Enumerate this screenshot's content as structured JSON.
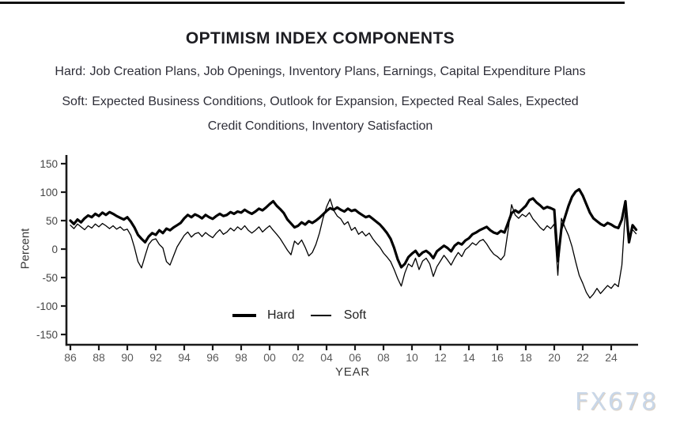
{
  "page": {
    "watermark": "FX678"
  },
  "header": {
    "title": "OPTIMISM INDEX COMPONENTS",
    "hard_label": "Hard:",
    "hard_items": "Job Creation Plans, Job Openings, Inventory Plans, Earnings, Capital Expenditure Plans",
    "soft_label": "Soft:",
    "soft_items_line1": "Expected Business Conditions, Outlook for Expansion, Expected Real Sales, Expected",
    "soft_items_line2": "Credit Conditions, Inventory Satisfaction"
  },
  "colors": {
    "line": "#000000",
    "axis": "#1a1a1a",
    "tick_label": "#5a5a5a",
    "text": "#2e2e38",
    "watermark": "#c9d7e8"
  },
  "chart_data": {
    "type": "line",
    "title": "OPTIMISM INDEX COMPONENTS",
    "xlabel": "YEAR",
    "ylabel": "Percent",
    "ylim": [
      -150,
      150
    ],
    "grid": false,
    "legend_position": "inside-bottom-center",
    "y_ticks": [
      150,
      100,
      50,
      0,
      -50,
      -100,
      -150
    ],
    "x_tick_years": [
      1986,
      1988,
      1990,
      1992,
      1994,
      1996,
      1998,
      2000,
      2002,
      2004,
      2006,
      2008,
      2010,
      2012,
      2014,
      2016,
      2018,
      2020,
      2022,
      2024
    ],
    "x_tick_labels": [
      "86",
      "88",
      "90",
      "92",
      "94",
      "96",
      "98",
      "00",
      "02",
      "04",
      "06",
      "08",
      "10",
      "12",
      "14",
      "16",
      "18",
      "20",
      "22",
      "24"
    ],
    "x_start": 1986,
    "x_step": 0.25,
    "x_end": 2025.75,
    "series": [
      {
        "name": "Hard",
        "stroke_width": 3.2,
        "values": [
          50,
          44,
          52,
          47,
          54,
          59,
          56,
          62,
          58,
          64,
          60,
          65,
          62,
          58,
          55,
          52,
          56,
          48,
          38,
          25,
          18,
          12,
          22,
          28,
          25,
          33,
          28,
          36,
          33,
          38,
          42,
          46,
          54,
          60,
          56,
          61,
          58,
          54,
          60,
          56,
          53,
          58,
          62,
          58,
          60,
          65,
          62,
          66,
          64,
          69,
          65,
          62,
          66,
          71,
          68,
          73,
          79,
          84,
          76,
          70,
          63,
          52,
          45,
          38,
          41,
          47,
          43,
          49,
          46,
          50,
          55,
          61,
          67,
          72,
          69,
          73,
          69,
          66,
          71,
          67,
          69,
          64,
          60,
          56,
          58,
          53,
          48,
          43,
          36,
          28,
          18,
          2,
          -18,
          -32,
          -26,
          -14,
          -8,
          -3,
          -12,
          -6,
          -3,
          -8,
          -16,
          -4,
          1,
          6,
          2,
          -4,
          6,
          11,
          8,
          15,
          19,
          26,
          29,
          33,
          36,
          39,
          33,
          29,
          27,
          32,
          29,
          46,
          63,
          68,
          64,
          70,
          76,
          86,
          89,
          82,
          77,
          71,
          74,
          72,
          69,
          -21,
          36,
          56,
          76,
          92,
          101,
          105,
          94,
          79,
          64,
          54,
          49,
          44,
          41,
          46,
          43,
          39,
          37,
          52,
          84,
          12,
          42,
          34
        ]
      },
      {
        "name": "Soft",
        "stroke_width": 1.3,
        "values": [
          42,
          36,
          44,
          39,
          34,
          41,
          37,
          44,
          39,
          45,
          41,
          36,
          41,
          35,
          39,
          33,
          35,
          24,
          3,
          -22,
          -33,
          -12,
          8,
          16,
          18,
          8,
          2,
          -22,
          -28,
          -12,
          4,
          14,
          24,
          30,
          21,
          27,
          29,
          22,
          29,
          24,
          20,
          28,
          34,
          26,
          30,
          37,
          32,
          39,
          34,
          41,
          33,
          28,
          33,
          39,
          30,
          36,
          41,
          33,
          26,
          18,
          8,
          -2,
          -10,
          14,
          8,
          16,
          3,
          -12,
          -6,
          8,
          28,
          54,
          74,
          88,
          68,
          58,
          53,
          43,
          48,
          33,
          38,
          26,
          31,
          23,
          28,
          18,
          10,
          3,
          -7,
          -14,
          -22,
          -36,
          -52,
          -65,
          -42,
          -26,
          -31,
          -16,
          -36,
          -21,
          -16,
          -26,
          -48,
          -31,
          -21,
          -11,
          -19,
          -28,
          -16,
          -6,
          -13,
          -1,
          4,
          11,
          7,
          14,
          17,
          9,
          -1,
          -9,
          -13,
          -19,
          -11,
          32,
          78,
          60,
          54,
          61,
          57,
          64,
          53,
          46,
          38,
          33,
          41,
          36,
          44,
          -46,
          54,
          38,
          24,
          4,
          -22,
          -46,
          -60,
          -76,
          -86,
          -79,
          -69,
          -78,
          -71,
          -64,
          -69,
          -61,
          -66,
          -28,
          70,
          24,
          34,
          27
        ]
      }
    ]
  }
}
